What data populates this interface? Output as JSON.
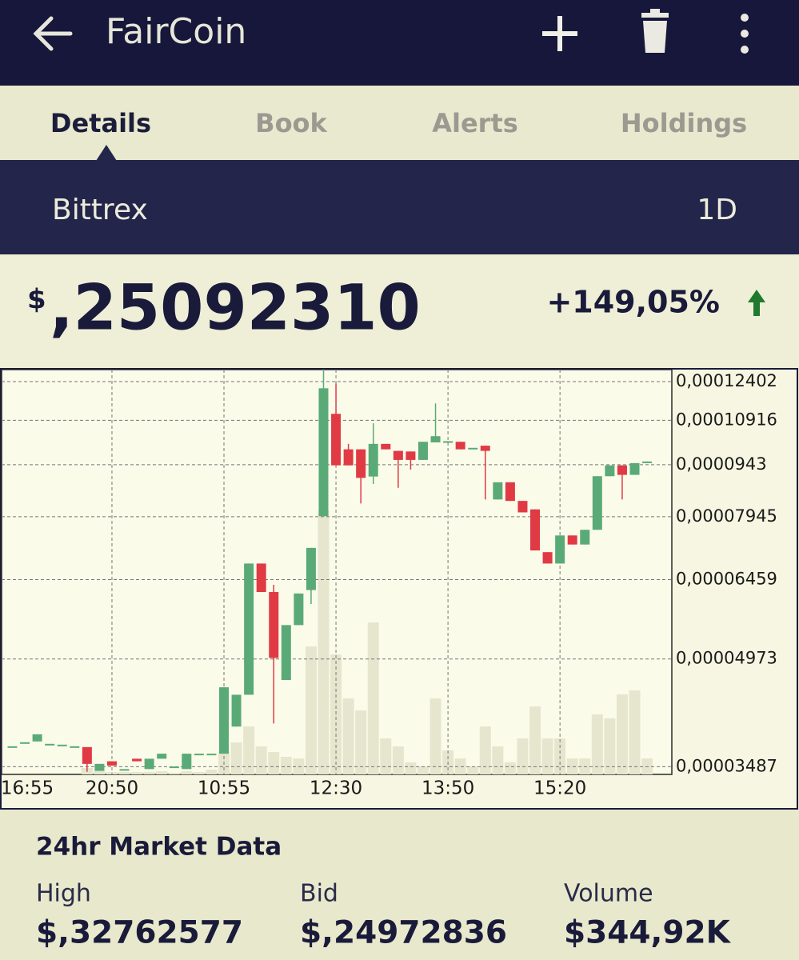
{
  "header": {
    "title": "FairCoin"
  },
  "tabs": [
    "Details",
    "Book",
    "Alerts",
    "Holdings"
  ],
  "exchange": "Bittrex",
  "range": "1D",
  "price": {
    "currency": "$",
    "value": ",25092310",
    "change": "+149,05%"
  },
  "chart_data": {
    "type": "candlestick",
    "categories": [
      null,
      "16:55",
      null,
      null,
      null,
      null,
      null,
      null,
      "20:50",
      null,
      null,
      null,
      null,
      null,
      null,
      null,
      null,
      "10:55",
      null,
      null,
      null,
      null,
      null,
      null,
      null,
      null,
      "12:30",
      null,
      null,
      null,
      null,
      null,
      null,
      null,
      null,
      "13:50",
      null,
      null,
      null,
      null,
      null,
      null,
      null,
      null,
      "15:20",
      null,
      null,
      null,
      null,
      null,
      null,
      null
    ],
    "open": [
      3.73e-05,
      3.78e-05,
      3.79e-05,
      3.76e-05,
      3.75e-05,
      3.73e-05,
      3.72e-05,
      3.44e-05,
      3.55e-05,
      3.46e-05,
      3.58e-05,
      3.46e-05,
      3.58e-05,
      3.49e-05,
      3.46e-05,
      3.64e-05,
      3.64e-05,
      3.64e-05,
      3.98e-05,
      4.42e-05,
      6.81e-05,
      6.2e-05,
      4.64e-05,
      5.56e-05,
      6.24e-05,
      7.96e-05,
      0.0001115,
      9.92e-05,
      9.92e-05,
      9.07e-05,
      0.000101,
      9.87e-05,
      9.85e-05,
      9.58e-05,
      0.0001015,
      0.0001015,
      0.0001017,
      9.97e-05,
      0.0001004,
      8.41e-05,
      8.9e-05,
      8.37e-05,
      8.14e-05,
      7.07e-05,
      6.81e-05,
      7.47e-05,
      7.25e-05,
      7.61e-05,
      9.08e-05,
      9.41e-05,
      9.12e-05,
      9.5e-05
    ],
    "high": [
      3.73e-05,
      3.78e-05,
      3.88e-05,
      3.76e-05,
      3.75e-05,
      3.73e-05,
      3.72e-05,
      3.52e-05,
      3.55e-05,
      3.46e-05,
      3.58e-05,
      3.58e-05,
      3.64e-05,
      3.49e-05,
      3.64e-05,
      3.64e-05,
      3.64e-05,
      4.53e-05,
      4.42e-05,
      6.81e-05,
      6.81e-05,
      6.35e-05,
      5.56e-05,
      6.17e-05,
      7.17e-05,
      0.0001291,
      0.0001232,
      0.000101,
      9.92e-05,
      0.0001081,
      0.000101,
      9.87e-05,
      9.85e-05,
      0.0001017,
      0.0001154,
      0.0001019,
      0.0001017,
      9.97e-05,
      0.0001004,
      8.9e-05,
      8.9e-05,
      8.37e-05,
      8.14e-05,
      7.07e-05,
      7.47e-05,
      7.47e-05,
      7.61e-05,
      9.08e-05,
      9.41e-05,
      9.41e-05,
      9.48e-05,
      9.53e-05
    ],
    "low": [
      3.73e-05,
      3.78e-05,
      3.79e-05,
      3.76e-05,
      3.75e-05,
      3.73e-05,
      3.43e-05,
      3.44e-05,
      3.5e-05,
      3.46e-05,
      3.55e-05,
      3.46e-05,
      3.58e-05,
      3.49e-05,
      3.46e-05,
      3.64e-05,
      3.64e-05,
      3.64e-05,
      3.98e-05,
      4.42e-05,
      6.2e-05,
      4.02e-05,
      4.64e-05,
      5.56e-05,
      5.96e-05,
      7.96e-05,
      9.41e-05,
      9.41e-05,
      8.3e-05,
      8.85e-05,
      9.92e-05,
      8.74e-05,
      9.28e-05,
      9.58e-05,
      0.0001015,
      0.0001015,
      9.92e-05,
      9.97e-05,
      8.41e-05,
      8.41e-05,
      8.37e-05,
      8.06e-05,
      7.11e-05,
      6.81e-05,
      6.81e-05,
      7.25e-05,
      7.25e-05,
      7.61e-05,
      9.08e-05,
      8.41e-05,
      9.12e-05,
      9.5e-05
    ],
    "close": [
      3.73e-05,
      3.78e-05,
      3.88e-05,
      3.76e-05,
      3.75e-05,
      3.73e-05,
      3.52e-05,
      3.52e-05,
      3.5e-05,
      3.46e-05,
      3.55e-05,
      3.58e-05,
      3.64e-05,
      3.49e-05,
      3.64e-05,
      3.64e-05,
      3.64e-05,
      4.53e-05,
      4.42e-05,
      6.81e-05,
      6.2e-05,
      4.99e-05,
      5.56e-05,
      6.17e-05,
      7.17e-05,
      0.0001213,
      9.41e-05,
      9.41e-05,
      9.03e-05,
      0.000101,
      9.92e-05,
      9.58e-05,
      9.58e-05,
      0.0001017,
      0.0001036,
      0.0001019,
      9.92e-05,
      9.97e-05,
      9.87e-05,
      8.9e-05,
      8.37e-05,
      8.06e-05,
      7.11e-05,
      6.81e-05,
      7.47e-05,
      7.25e-05,
      7.61e-05,
      9.08e-05,
      9.41e-05,
      9.12e-05,
      9.48e-05,
      9.53e-05
    ],
    "volume": [
      0,
      0,
      0,
      0,
      0,
      0,
      8,
      5,
      3,
      3,
      3,
      3,
      4,
      2,
      4,
      3,
      6,
      28,
      40,
      60,
      35,
      28,
      22,
      20,
      160,
      330,
      150,
      95,
      80,
      190,
      45,
      35,
      15,
      10,
      95,
      30,
      20,
      10,
      60,
      35,
      15,
      45,
      85,
      45,
      45,
      20,
      20,
      75,
      70,
      100,
      105,
      20
    ],
    "up_color": "#5aaa78",
    "down_color": "#e03a44",
    "volume_color": "#e6e6cf",
    "log_scale": true,
    "grid": true,
    "ylim": [
      3.4e-05,
      0.000129
    ],
    "yticks": [
      {
        "value": 3.487e-05,
        "label": "0,00003487"
      },
      {
        "value": 4.973e-05,
        "label": "0,00004973"
      },
      {
        "value": 6.459e-05,
        "label": "0,00006459"
      },
      {
        "value": 7.945e-05,
        "label": "0,00007945"
      },
      {
        "value": 9.43e-05,
        "label": "0,0000943"
      },
      {
        "value": 0.00010916,
        "label": "0,00010916"
      },
      {
        "value": 0.00012402,
        "label": "0,00012402"
      }
    ]
  },
  "market_data": {
    "title": "24hr Market Data",
    "items": [
      {
        "label": "High",
        "value": "$,32762577"
      },
      {
        "label": "Bid",
        "value": "$,24972836"
      },
      {
        "label": "Volume",
        "value": "$344,92K"
      }
    ]
  }
}
